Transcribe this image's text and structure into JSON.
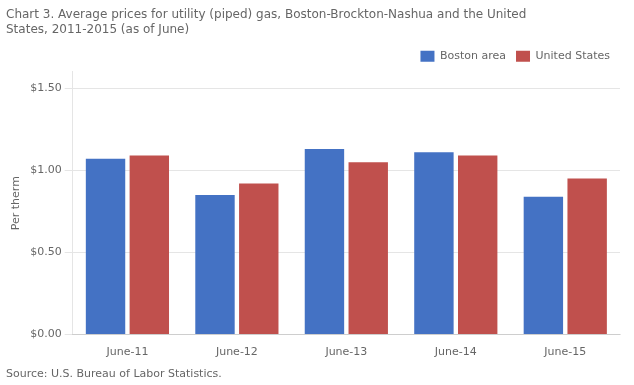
{
  "chart_data": {
    "type": "bar",
    "title": [
      "Chart 3. Average prices for utility (piped) gas, Boston-Brockton-Nashua and the United",
      "States, 2011-2015 (as of June)"
    ],
    "ylabel": "Per therm",
    "source": "Source: U.S. Bureau of Labor Statistics.",
    "categories": [
      "June-11",
      "June-12",
      "June-13",
      "June-14",
      "June-15"
    ],
    "series": [
      {
        "name": "Boston area",
        "color": "#4472C4",
        "values": [
          1.07,
          0.85,
          1.13,
          1.11,
          0.84
        ]
      },
      {
        "name": "United States",
        "color": "#C0504D",
        "values": [
          1.09,
          0.92,
          1.05,
          1.09,
          0.95
        ]
      }
    ],
    "ylim": [
      0.0,
      1.6
    ],
    "yticks": [
      {
        "value": 0,
        "label": "$0.00"
      },
      {
        "value": 0.5,
        "label": "$0.50"
      },
      {
        "value": 1,
        "label": "$1.00"
      },
      {
        "value": 1.5,
        "label": "$1.50"
      }
    ],
    "grid": true,
    "legend": "top-right"
  }
}
